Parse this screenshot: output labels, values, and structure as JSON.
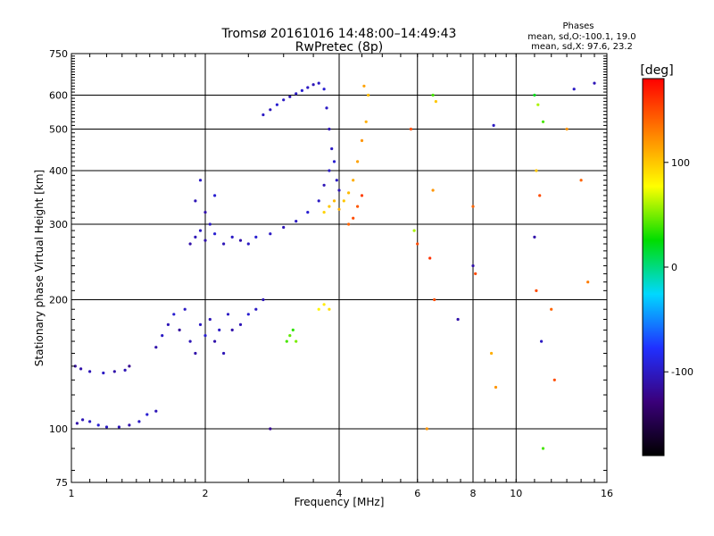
{
  "chart_data": {
    "type": "scatter",
    "title": "Tromsø 20161016 14:48:00–14:49:43",
    "subtitle": "RwPretec (8p)",
    "xlabel": "Frequency [MHz]",
    "ylabel": "Stationary phase Virtual Height [km]",
    "x_scale": "log",
    "y_scale": "log",
    "xlim": [
      1,
      16
    ],
    "ylim": [
      75,
      750
    ],
    "x_ticks": [
      1,
      2,
      4,
      6,
      8,
      10,
      16
    ],
    "y_ticks": [
      75,
      100,
      200,
      300,
      400,
      500,
      600,
      750
    ],
    "grid": true,
    "phases_info": {
      "heading": "Phases",
      "line1": "mean, sd,O:-100.1, 19.0",
      "line2": "mean, sd,X:  97.6, 23.2"
    },
    "colorbar": {
      "label": "[deg]",
      "min": -180,
      "max": 180,
      "ticks": [
        100,
        0,
        -100
      ],
      "colors": [
        "#000000",
        "#3a007a",
        "#2030ff",
        "#00d8ff",
        "#00dd00",
        "#ffff00",
        "#ff8000",
        "#ff0000"
      ]
    },
    "series": [
      {
        "values": [
          [
            1.03,
            103,
            -110
          ],
          [
            1.06,
            105,
            -105
          ],
          [
            1.1,
            104,
            -100
          ],
          [
            1.15,
            102,
            -95
          ],
          [
            1.2,
            101,
            -100
          ],
          [
            1.28,
            101,
            -105
          ],
          [
            1.35,
            102,
            -110
          ],
          [
            1.42,
            104,
            -100
          ],
          [
            1.48,
            108,
            -95
          ],
          [
            1.55,
            110,
            -105
          ],
          [
            1.02,
            140,
            -115
          ],
          [
            1.05,
            138,
            -110
          ],
          [
            1.1,
            136,
            -105
          ],
          [
            1.18,
            135,
            -100
          ],
          [
            1.25,
            136,
            -110
          ],
          [
            1.32,
            137,
            -105
          ],
          [
            1.55,
            155,
            -110
          ],
          [
            1.6,
            165,
            -100
          ],
          [
            1.65,
            175,
            -105
          ],
          [
            1.7,
            185,
            -95
          ],
          [
            1.75,
            170,
            -115
          ],
          [
            1.8,
            190,
            -100
          ],
          [
            1.85,
            160,
            -105
          ],
          [
            1.9,
            150,
            -110
          ],
          [
            1.95,
            175,
            -100
          ],
          [
            2.0,
            165,
            -95
          ],
          [
            2.05,
            180,
            -105
          ],
          [
            2.1,
            160,
            -110
          ],
          [
            2.15,
            170,
            -100
          ],
          [
            2.2,
            150,
            -105
          ],
          [
            2.25,
            185,
            -100
          ],
          [
            2.3,
            170,
            -110
          ],
          [
            2.4,
            175,
            -105
          ],
          [
            2.5,
            185,
            -95
          ],
          [
            2.6,
            190,
            -100
          ],
          [
            2.7,
            200,
            -105
          ],
          [
            1.85,
            270,
            -110
          ],
          [
            1.9,
            280,
            -105
          ],
          [
            1.95,
            290,
            -100
          ],
          [
            2.0,
            275,
            -110
          ],
          [
            2.05,
            300,
            -100
          ],
          [
            2.1,
            285,
            -95
          ],
          [
            2.2,
            270,
            -105
          ],
          [
            2.3,
            280,
            -100
          ],
          [
            2.4,
            275,
            -110
          ],
          [
            2.5,
            270,
            -100
          ],
          [
            2.6,
            280,
            -95
          ],
          [
            2.8,
            285,
            -100
          ],
          [
            3.0,
            295,
            -105
          ],
          [
            3.2,
            305,
            -100
          ],
          [
            3.4,
            320,
            -95
          ],
          [
            3.6,
            340,
            -100
          ],
          [
            3.7,
            370,
            -105
          ],
          [
            3.8,
            400,
            -100
          ],
          [
            1.9,
            340,
            -105
          ],
          [
            1.95,
            380,
            -100
          ],
          [
            2.0,
            320,
            -110
          ],
          [
            2.1,
            350,
            -95
          ],
          [
            2.7,
            540,
            -100
          ],
          [
            2.8,
            555,
            -105
          ],
          [
            2.9,
            570,
            -95
          ],
          [
            3.0,
            585,
            -100
          ],
          [
            3.1,
            595,
            -105
          ],
          [
            3.2,
            605,
            -100
          ],
          [
            3.3,
            615,
            -95
          ],
          [
            3.4,
            625,
            -100
          ],
          [
            3.5,
            635,
            -105
          ],
          [
            3.6,
            640,
            -100
          ],
          [
            3.7,
            620,
            -95
          ],
          [
            3.75,
            560,
            -100
          ],
          [
            3.8,
            500,
            -105
          ],
          [
            3.85,
            450,
            -100
          ],
          [
            3.9,
            420,
            -95
          ],
          [
            3.95,
            380,
            -100
          ],
          [
            4.0,
            360,
            -105
          ],
          [
            3.05,
            160,
            40
          ],
          [
            3.1,
            165,
            45
          ],
          [
            3.15,
            170,
            35
          ],
          [
            3.2,
            160,
            50
          ],
          [
            3.6,
            190,
            80
          ],
          [
            3.7,
            195,
            85
          ],
          [
            3.8,
            190,
            90
          ],
          [
            3.7,
            320,
            95
          ],
          [
            3.8,
            330,
            100
          ],
          [
            3.9,
            340,
            105
          ],
          [
            4.0,
            325,
            110
          ],
          [
            4.1,
            340,
            100
          ],
          [
            4.2,
            355,
            105
          ],
          [
            4.3,
            380,
            110
          ],
          [
            4.4,
            420,
            115
          ],
          [
            4.5,
            470,
            120
          ],
          [
            4.6,
            520,
            110
          ],
          [
            4.65,
            600,
            105
          ],
          [
            4.55,
            630,
            115
          ],
          [
            4.2,
            300,
            140
          ],
          [
            4.3,
            310,
            150
          ],
          [
            4.4,
            330,
            145
          ],
          [
            4.5,
            350,
            155
          ],
          [
            6.5,
            360,
            120
          ],
          [
            6.55,
            200,
            150
          ],
          [
            6.4,
            250,
            160
          ],
          [
            6.5,
            600,
            40
          ],
          [
            6.6,
            580,
            100
          ],
          [
            8.0,
            330,
            140
          ],
          [
            8.1,
            230,
            150
          ],
          [
            8.0,
            240,
            -110
          ],
          [
            11.0,
            600,
            20
          ],
          [
            11.2,
            570,
            60
          ],
          [
            11.5,
            520,
            40
          ],
          [
            11.1,
            400,
            100
          ],
          [
            11.3,
            350,
            150
          ],
          [
            11.0,
            280,
            -110
          ],
          [
            11.1,
            210,
            150
          ],
          [
            12.0,
            190,
            140
          ],
          [
            11.4,
            160,
            -100
          ],
          [
            12.2,
            130,
            150
          ],
          [
            11.5,
            90,
            40
          ],
          [
            13.0,
            500,
            120
          ],
          [
            13.5,
            620,
            -100
          ],
          [
            14.0,
            380,
            140
          ],
          [
            14.5,
            220,
            130
          ],
          [
            15.0,
            640,
            -105
          ],
          [
            5.8,
            500,
            150
          ],
          [
            5.9,
            290,
            60
          ],
          [
            6.0,
            270,
            150
          ],
          [
            6.3,
            100,
            120
          ],
          [
            7.4,
            180,
            -110
          ],
          [
            8.8,
            150,
            110
          ],
          [
            9.0,
            125,
            120
          ],
          [
            8.9,
            510,
            -100
          ],
          [
            2.8,
            100,
            -120
          ],
          [
            1.35,
            140,
            -120
          ]
        ]
      }
    ]
  }
}
